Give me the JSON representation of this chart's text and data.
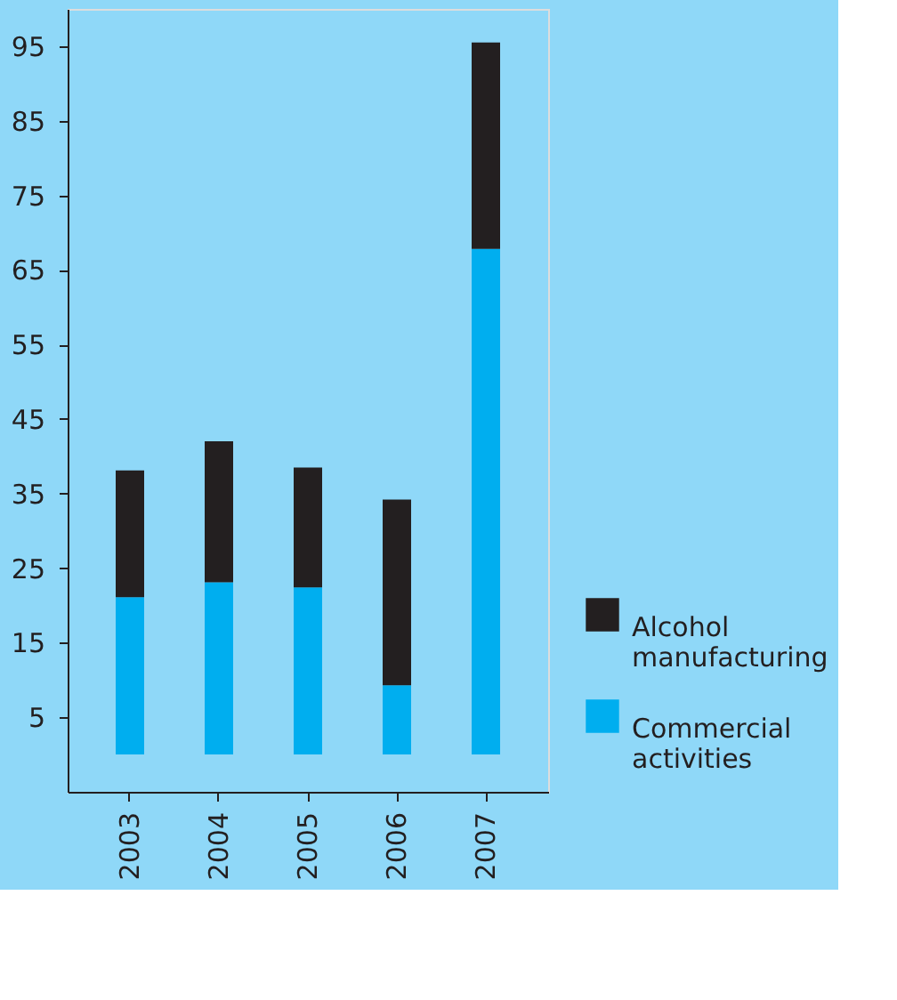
{
  "chart_data": {
    "type": "bar",
    "stacked": true,
    "categories": [
      "2003",
      "2004",
      "2005",
      "2006",
      "2007"
    ],
    "series": [
      {
        "name": "Commercial activities",
        "color": "#00aeef",
        "values": [
          21.1,
          23.1,
          22.4,
          9.3,
          67.8
        ]
      },
      {
        "name": "Alcohol manufacturing",
        "color": "#231f20",
        "values": [
          17.0,
          18.9,
          16.1,
          24.9,
          27.7
        ]
      }
    ],
    "ylim": [
      -5,
      100
    ],
    "yticks": [
      5,
      15,
      25,
      35,
      45,
      55,
      65,
      75,
      85,
      95
    ],
    "grid": false,
    "legend": "bottom right"
  }
}
